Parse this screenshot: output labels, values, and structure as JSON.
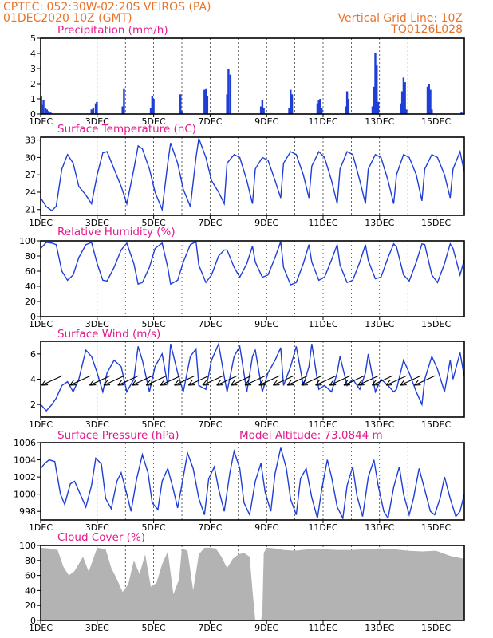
{
  "header": {
    "source_line": "CPTEC:   052:30W-02:20S   VEIROS (PA)",
    "date_line": "01DEC2020  10Z (GMT)",
    "grid_note": "Vertical Grid Line: 10Z",
    "model_code": "TQ0126L028"
  },
  "colors": {
    "header": "#e8742a",
    "title": "#e6198c",
    "series": "#1f3ed6",
    "cloud": "#b3b3b3"
  },
  "chart_data": [
    {
      "id": "precip",
      "type": "bar",
      "title": "Precipitation (mm/h)",
      "x_range_days": [
        1,
        16
      ],
      "ylim": [
        0,
        5
      ],
      "yticks": [
        "0",
        "1",
        "2",
        "3",
        "4",
        "5"
      ],
      "xticks": [
        "1DEC",
        "3DEC",
        "5DEC",
        "7DEC",
        "9DEC",
        "11DEC",
        "13DEC",
        "15DEC"
      ],
      "x": [
        1.02,
        1.05,
        1.1,
        1.17,
        1.22,
        1.28,
        1.35,
        2.8,
        2.86,
        2.95,
        2.99,
        3.9,
        3.95,
        4.9,
        4.95,
        5.0,
        5.95,
        6.0,
        6.8,
        6.86,
        6.9,
        7.6,
        7.65,
        7.72,
        8.8,
        8.85,
        8.9,
        9.8,
        9.85,
        9.9,
        10.8,
        10.85,
        10.9,
        10.95,
        11.8,
        11.85,
        11.9,
        12.75,
        12.8,
        12.85,
        12.9,
        12.95,
        13.75,
        13.8,
        13.85,
        13.9,
        13.95,
        14.7,
        14.75,
        14.8,
        14.85,
        15.9
      ],
      "values": [
        1.2,
        0.6,
        0.9,
        0.4,
        0.3,
        0.2,
        0.1,
        0.3,
        0.4,
        0.7,
        0.8,
        0.5,
        1.7,
        0.4,
        1.2,
        1.0,
        1.3,
        0.2,
        1.6,
        1.7,
        1.2,
        1.3,
        3.0,
        2.6,
        0.5,
        0.9,
        0.4,
        0.4,
        1.6,
        1.3,
        0.7,
        0.9,
        1.0,
        0.4,
        0.5,
        1.5,
        1.0,
        0.5,
        1.8,
        4.0,
        3.2,
        0.8,
        0.7,
        1.5,
        2.4,
        2.1,
        0.3,
        1.8,
        2.0,
        1.6,
        0.3,
        0.1
      ]
    },
    {
      "id": "temp",
      "type": "line",
      "title": "Surface Temperature (nC)",
      "x_range_days": [
        1,
        16
      ],
      "ylim": [
        20,
        33.5
      ],
      "yticks": [
        "21",
        "24",
        "27",
        "30",
        "33"
      ],
      "xticks": [
        "1DEC",
        "3DEC",
        "5DEC",
        "7DEC",
        "9DEC",
        "11DEC",
        "13DEC",
        "15DEC"
      ],
      "x": [
        1.0,
        1.2,
        1.4,
        1.55,
        1.75,
        1.95,
        2.15,
        2.35,
        2.6,
        2.8,
        3.0,
        3.2,
        3.35,
        3.6,
        3.85,
        4.05,
        4.3,
        4.45,
        4.6,
        4.85,
        5.05,
        5.3,
        5.5,
        5.6,
        5.85,
        6.05,
        6.3,
        6.5,
        6.6,
        6.85,
        7.05,
        7.3,
        7.5,
        7.6,
        7.85,
        8.05,
        8.3,
        8.5,
        8.6,
        8.85,
        9.05,
        9.3,
        9.5,
        9.6,
        9.85,
        10.05,
        10.3,
        10.5,
        10.6,
        10.85,
        11.05,
        11.3,
        11.5,
        11.6,
        11.85,
        12.05,
        12.3,
        12.5,
        12.6,
        12.85,
        13.05,
        13.3,
        13.5,
        13.6,
        13.85,
        14.05,
        14.3,
        14.5,
        14.6,
        14.85,
        15.05,
        15.3,
        15.5,
        15.6,
        15.85,
        16.0
      ],
      "y": [
        23,
        21.5,
        20.8,
        21.6,
        28,
        30.5,
        29,
        25,
        23.5,
        22,
        27,
        30.8,
        31,
        28,
        25,
        22,
        28,
        32,
        31.5,
        28,
        24,
        21,
        29,
        32.5,
        29,
        24.5,
        21.5,
        30,
        33.3,
        30,
        26,
        24,
        22,
        29,
        30.5,
        30,
        26,
        22,
        28,
        30,
        29.5,
        26,
        23,
        29,
        31,
        30.5,
        27,
        23,
        28.5,
        31,
        30,
        26,
        22,
        28,
        31,
        30.5,
        26,
        22,
        28,
        30.5,
        30,
        26,
        22,
        27,
        30.5,
        30,
        27,
        22.5,
        28,
        30.5,
        30,
        27,
        23,
        28,
        31,
        27.5
      ]
    },
    {
      "id": "humidity",
      "type": "line",
      "title": "Relative Humidity (%)",
      "x_range_days": [
        1,
        16
      ],
      "ylim": [
        0,
        100
      ],
      "yticks": [
        "0",
        "20",
        "40",
        "60",
        "80",
        "100"
      ],
      "xticks": [
        "1DEC",
        "3DEC",
        "5DEC",
        "7DEC",
        "9DEC",
        "11DEC",
        "13DEC",
        "15DEC"
      ],
      "x": [
        1.0,
        1.2,
        1.4,
        1.55,
        1.75,
        1.95,
        2.15,
        2.35,
        2.6,
        2.8,
        3.0,
        3.2,
        3.35,
        3.6,
        3.85,
        4.05,
        4.3,
        4.45,
        4.6,
        4.85,
        5.05,
        5.3,
        5.5,
        5.6,
        5.85,
        6.05,
        6.3,
        6.5,
        6.6,
        6.85,
        7.05,
        7.3,
        7.5,
        7.6,
        7.85,
        8.05,
        8.3,
        8.5,
        8.6,
        8.85,
        9.05,
        9.3,
        9.5,
        9.6,
        9.85,
        10.05,
        10.3,
        10.5,
        10.6,
        10.85,
        11.05,
        11.3,
        11.5,
        11.6,
        11.85,
        12.05,
        12.3,
        12.5,
        12.6,
        12.85,
        13.05,
        13.3,
        13.5,
        13.6,
        13.85,
        14.05,
        14.3,
        14.5,
        14.6,
        14.85,
        15.05,
        15.3,
        15.5,
        15.6,
        15.85,
        16.0
      ],
      "y": [
        90,
        98,
        97,
        95,
        60,
        48,
        55,
        78,
        95,
        98,
        70,
        48,
        47,
        65,
        88,
        97,
        70,
        43,
        45,
        65,
        90,
        97,
        65,
        43,
        48,
        72,
        95,
        99,
        68,
        45,
        55,
        80,
        88,
        88,
        65,
        52,
        70,
        93,
        72,
        52,
        55,
        78,
        99,
        65,
        42,
        45,
        70,
        95,
        72,
        48,
        52,
        75,
        95,
        68,
        45,
        48,
        72,
        95,
        74,
        50,
        52,
        78,
        96,
        92,
        55,
        47,
        72,
        96,
        95,
        55,
        45,
        70,
        96,
        90,
        55,
        75
      ]
    },
    {
      "id": "wind",
      "type": "line",
      "title": "Surface Wind (m/s)",
      "x_range_days": [
        1,
        16
      ],
      "ylim": [
        1,
        7
      ],
      "yticks": [
        "2",
        "4",
        "6"
      ],
      "xticks": [
        "1DEC",
        "3DEC",
        "5DEC",
        "7DEC",
        "9DEC",
        "11DEC",
        "13DEC",
        "15DEC"
      ],
      "x": [
        1.0,
        1.2,
        1.4,
        1.55,
        1.75,
        1.95,
        2.15,
        2.35,
        2.6,
        2.8,
        3.0,
        3.2,
        3.35,
        3.6,
        3.85,
        4.05,
        4.3,
        4.45,
        4.6,
        4.85,
        5.05,
        5.3,
        5.5,
        5.6,
        5.85,
        6.05,
        6.3,
        6.5,
        6.6,
        6.85,
        7.05,
        7.3,
        7.5,
        7.6,
        7.85,
        8.05,
        8.3,
        8.5,
        8.6,
        8.85,
        9.05,
        9.3,
        9.5,
        9.6,
        9.85,
        10.05,
        10.3,
        10.5,
        10.6,
        10.85,
        11.05,
        11.3,
        11.5,
        11.6,
        11.85,
        12.05,
        12.3,
        12.5,
        12.6,
        12.85,
        13.05,
        13.3,
        13.5,
        13.6,
        13.85,
        14.05,
        14.3,
        14.5,
        14.6,
        14.85,
        15.05,
        15.3,
        15.5,
        15.6,
        15.85,
        16.0
      ],
      "y": [
        2.0,
        1.5,
        2.0,
        2.5,
        3.5,
        3.8,
        3.0,
        4.0,
        6.3,
        5.8,
        4.5,
        3.0,
        4.5,
        5.5,
        5.0,
        3.0,
        4.0,
        6.6,
        5.5,
        3.0,
        5.0,
        6.0,
        3.5,
        6.8,
        4.5,
        3.0,
        5.8,
        6.4,
        3.5,
        3.2,
        5.5,
        6.8,
        4.2,
        3.0,
        5.8,
        6.6,
        3.0,
        5.8,
        6.3,
        3.0,
        4.5,
        5.5,
        6.5,
        3.5,
        5.0,
        6.6,
        3.5,
        5.0,
        6.8,
        3.2,
        3.5,
        3.0,
        4.5,
        5.8,
        3.5,
        4.0,
        3.2,
        4.5,
        6.0,
        3.0,
        4.0,
        3.5,
        3.0,
        3.2,
        5.5,
        4.5,
        3.0,
        2.0,
        4.0,
        5.8,
        4.8,
        3.0,
        5.5,
        4.0,
        6.1,
        4.2
      ],
      "arrow_days": [
        1.4,
        2.4,
        3.1,
        3.6,
        4.1,
        4.6,
        5.1,
        5.6,
        6.1,
        6.6,
        7.1,
        7.6,
        8.1,
        8.6,
        9.1,
        9.6,
        10.1,
        10.6,
        11.1,
        11.6,
        12.1,
        12.6,
        13.1,
        13.6,
        14.1,
        14.6
      ]
    },
    {
      "id": "pressure",
      "type": "line",
      "title": "Surface Pressure (hPa)",
      "annotation": "Model Altitude: 73.0844 m",
      "x_range_days": [
        1,
        16
      ],
      "ylim": [
        997,
        1006
      ],
      "yticks": [
        "998",
        "1000",
        "1002",
        "1004",
        "1006"
      ],
      "xticks": [
        "1DEC",
        "3DEC",
        "5DEC",
        "7DEC",
        "9DEC",
        "11DEC",
        "13DEC",
        "15DEC"
      ],
      "x": [
        1.0,
        1.15,
        1.3,
        1.5,
        1.7,
        1.85,
        2.05,
        2.2,
        2.4,
        2.6,
        2.8,
        2.95,
        3.15,
        3.3,
        3.5,
        3.7,
        3.85,
        4.05,
        4.2,
        4.4,
        4.6,
        4.8,
        4.95,
        5.15,
        5.3,
        5.5,
        5.7,
        5.85,
        6.05,
        6.2,
        6.4,
        6.6,
        6.8,
        6.95,
        7.15,
        7.3,
        7.5,
        7.7,
        7.85,
        8.05,
        8.2,
        8.4,
        8.6,
        8.8,
        8.95,
        9.15,
        9.3,
        9.5,
        9.7,
        9.85,
        10.05,
        10.2,
        10.4,
        10.6,
        10.8,
        10.95,
        11.15,
        11.3,
        11.5,
        11.7,
        11.85,
        12.05,
        12.2,
        12.4,
        12.6,
        12.8,
        12.95,
        13.15,
        13.3,
        13.5,
        13.7,
        13.85,
        14.05,
        14.2,
        14.4,
        14.6,
        14.8,
        14.95,
        15.15,
        15.3,
        15.5,
        15.7,
        15.85,
        16.0
      ],
      "y": [
        1003,
        1003.6,
        1004,
        1003.8,
        1000,
        998.8,
        1001.2,
        1001.5,
        1000,
        998.5,
        1001,
        1004.2,
        1003.5,
        999.5,
        998.3,
        1001.5,
        1002.5,
        1000,
        998,
        1001.8,
        1004.6,
        1002.5,
        999,
        998.2,
        1001.5,
        1003,
        1000.5,
        998.4,
        1002,
        1004.8,
        1003,
        999.5,
        997.6,
        1001.8,
        1003.2,
        1000.6,
        998,
        1002.5,
        1005,
        1003,
        999,
        997.6,
        1001.5,
        1003.6,
        1000.2,
        998,
        1002.4,
        1005.4,
        1003,
        999.4,
        997.6,
        1001.8,
        1003,
        999.6,
        997.2,
        1000.5,
        1004,
        1002,
        998.5,
        997.2,
        1001,
        1003.2,
        999.8,
        997.4,
        1002,
        1004,
        1001,
        998,
        997.2,
        1000.8,
        1003.2,
        1000,
        997.6,
        999.5,
        1003,
        1000.5,
        998,
        997.6,
        999.6,
        1002,
        999.5,
        997.4,
        998,
        1000
      ]
    },
    {
      "id": "cloud",
      "type": "area",
      "title": "Cloud Cover (%)",
      "x_range_days": [
        1,
        16
      ],
      "ylim": [
        0,
        100
      ],
      "yticks": [
        "0",
        "20",
        "40",
        "60",
        "80",
        "100"
      ],
      "xticks": [
        "1DEC",
        "3DEC",
        "5DEC",
        "7DEC",
        "9DEC",
        "11DEC",
        "13DEC",
        "15DEC"
      ],
      "x": [
        1.0,
        1.3,
        1.6,
        1.8,
        2.0,
        2.2,
        2.5,
        2.7,
        3.0,
        3.3,
        3.5,
        3.7,
        3.9,
        4.1,
        4.3,
        4.5,
        4.7,
        4.9,
        5.1,
        5.3,
        5.5,
        5.7,
        5.9,
        6.0,
        6.2,
        6.4,
        6.6,
        6.8,
        7.0,
        7.2,
        7.4,
        7.6,
        7.8,
        8.0,
        8.2,
        8.4,
        8.5,
        8.6,
        8.7,
        8.8,
        8.85,
        8.9,
        9.0,
        9.3,
        9.6,
        10.0,
        10.5,
        11.0,
        11.5,
        12.0,
        12.5,
        13.0,
        13.5,
        14.0,
        14.5,
        15.0,
        15.5,
        16.0
      ],
      "y": [
        97,
        96,
        94,
        72,
        60,
        66,
        85,
        65,
        97,
        95,
        70,
        55,
        38,
        48,
        80,
        62,
        88,
        45,
        50,
        75,
        92,
        35,
        55,
        96,
        93,
        40,
        88,
        97,
        97,
        96,
        85,
        70,
        82,
        88,
        90,
        85,
        40,
        0,
        0,
        0,
        10,
        90,
        97,
        96,
        94,
        93,
        95,
        95,
        94,
        94,
        95,
        96,
        95,
        93,
        92,
        93,
        86,
        82
      ]
    }
  ]
}
